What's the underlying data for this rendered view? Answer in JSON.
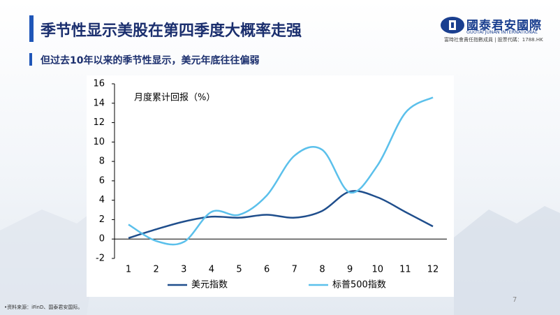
{
  "header": {
    "title": "季节性显示美股在第四季度大概率走强",
    "subtitle": "但过去10年以来的季节性显示，美元年底往往偏弱",
    "logo_name": "國泰君安國際",
    "logo_english": "GUOTAI JUNAN INTERNATIONAL",
    "logo_subtitle": "富時社會責任指數成員 | 股票代碼：1788.HK"
  },
  "footer": {
    "source": "•资料来源：iFinD、国泰君安国际。",
    "page": "7"
  },
  "chart_data": {
    "type": "line",
    "title": "月度累计回报（%）",
    "categories": [
      "1",
      "2",
      "3",
      "4",
      "5",
      "6",
      "7",
      "8",
      "9",
      "10",
      "11",
      "12"
    ],
    "series": [
      {
        "name": "美元指数",
        "color": "#1f4e8c",
        "values": [
          0.1,
          1.0,
          1.8,
          2.3,
          2.2,
          2.5,
          2.2,
          2.9,
          4.9,
          4.3,
          2.8,
          1.3
        ]
      },
      {
        "name": "标普500指数",
        "color": "#5bc0eb",
        "values": [
          1.5,
          -0.2,
          -0.3,
          2.8,
          2.5,
          4.5,
          8.6,
          9.2,
          4.8,
          7.6,
          13.0,
          14.6
        ]
      }
    ],
    "ylim": [
      -2,
      16
    ],
    "yticks": [
      -2,
      0,
      2,
      4,
      6,
      8,
      10,
      12,
      14,
      16
    ],
    "grid": false,
    "legend": "bottom"
  }
}
